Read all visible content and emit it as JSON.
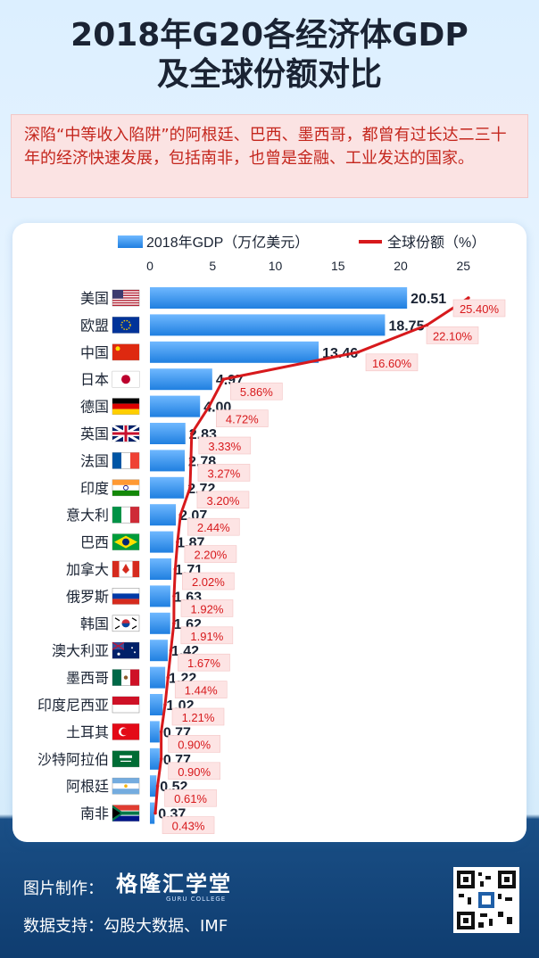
{
  "title": {
    "line1": "2018年G20各经济体GDP",
    "line2": "及全球份额对比"
  },
  "intro": "深陷“中等收入陷阱”的阿根廷、巴西、墨西哥，都曾有过长达二三十年的经济快速发展，包括南非，也曾是金融、工业发达的国家。",
  "chart_data": {
    "type": "bar",
    "title": "2018年G20各经济体GDP及全球份额对比",
    "categories": [
      "美国",
      "欧盟",
      "中国",
      "日本",
      "德国",
      "英国",
      "法国",
      "印度",
      "意大利",
      "巴西",
      "加拿大",
      "俄罗斯",
      "韩国",
      "澳大利亚",
      "墨西哥",
      "印度尼西亚",
      "土耳其",
      "沙特阿拉伯",
      "阿根廷",
      "南非"
    ],
    "series": [
      {
        "name": "2018年GDP（万亿美元）",
        "kind": "bar",
        "values": [
          20.51,
          18.75,
          13.46,
          4.97,
          4.0,
          2.83,
          2.78,
          2.72,
          2.07,
          1.87,
          1.71,
          1.63,
          1.62,
          1.42,
          1.22,
          1.02,
          0.77,
          0.77,
          0.52,
          0.37
        ],
        "labels": [
          "20.51",
          "18.75",
          "13.46",
          "4.97",
          "4.00",
          "2.83",
          "2.78",
          "2.72",
          "2.07",
          "1.87",
          "1.71",
          "1.63",
          "1.62",
          "1.42",
          "1.22",
          "1.02",
          "0.77",
          "0.77",
          "0.52",
          "0.37"
        ]
      },
      {
        "name": "全球份额（%）",
        "kind": "line",
        "values": [
          25.4,
          22.1,
          16.6,
          5.86,
          4.72,
          3.33,
          3.27,
          3.2,
          2.44,
          2.2,
          2.02,
          1.92,
          1.91,
          1.67,
          1.44,
          1.21,
          0.9,
          0.9,
          0.61,
          0.43
        ],
        "labels": [
          "25.40%",
          "22.10%",
          "16.60%",
          "5.86%",
          "4.72%",
          "3.33%",
          "3.27%",
          "3.20%",
          "2.44%",
          "2.20%",
          "2.02%",
          "1.92%",
          "1.91%",
          "1.67%",
          "1.44%",
          "1.21%",
          "0.90%",
          "0.90%",
          "0.61%",
          "0.43%"
        ]
      }
    ],
    "xaxis": {
      "ticks": [
        0,
        5,
        10,
        15,
        20,
        25
      ],
      "tick_labels": [
        "0",
        "5",
        "10",
        "15",
        "20",
        "25"
      ],
      "range": [
        0,
        25
      ]
    },
    "orientation": "horizontal",
    "legend_position": "top",
    "colors": {
      "bar": "#1f7fe0",
      "bar_light": "#6fb8ff",
      "line": "#d7191c",
      "label_bg": "#fde4e4",
      "label_text": "#d7191c"
    }
  },
  "footer": {
    "maker_label": "图片制作：",
    "brand": "格隆汇学堂",
    "brand_sub": "GURU COLLEGE",
    "source": "数据支持：勾股大数据、IMF"
  },
  "flags": [
    "flag-usa-icon",
    "flag-eu-icon",
    "flag-china-icon",
    "flag-japan-icon",
    "flag-germany-icon",
    "flag-uk-icon",
    "flag-france-icon",
    "flag-india-icon",
    "flag-italy-icon",
    "flag-brazil-icon",
    "flag-canada-icon",
    "flag-russia-icon",
    "flag-korea-icon",
    "flag-australia-icon",
    "flag-mexico-icon",
    "flag-indonesia-icon",
    "flag-turkey-icon",
    "flag-saudi-icon",
    "flag-argentina-icon",
    "flag-south-africa-icon"
  ]
}
